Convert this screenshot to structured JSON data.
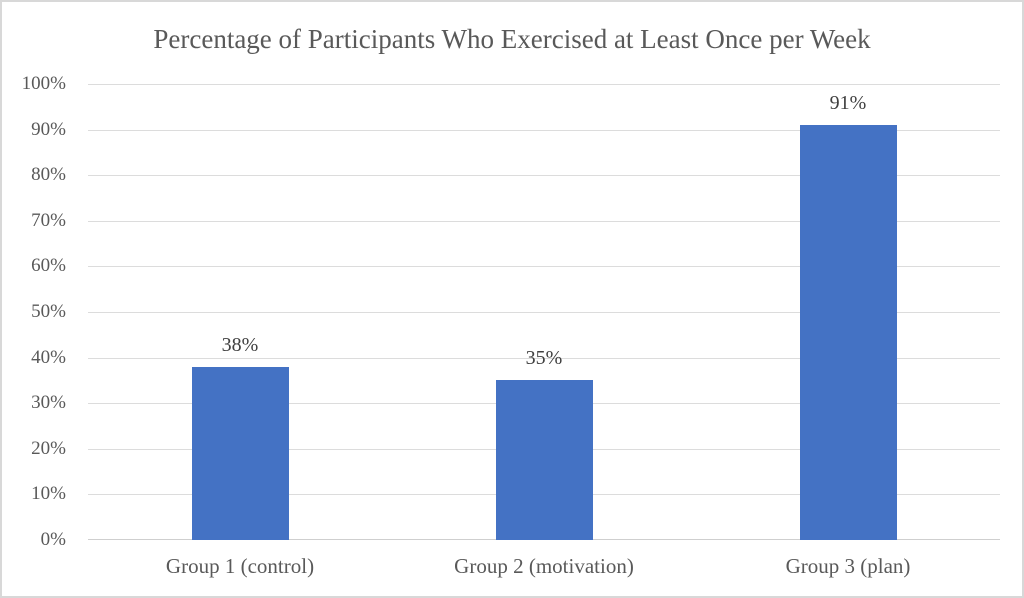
{
  "chart_data": {
    "type": "bar",
    "title": "Percentage of Participants Who Exercised at Least Once per Week",
    "categories": [
      "Group 1 (control)",
      "Group 2 (motivation)",
      "Group 3 (plan)"
    ],
    "values": [
      38,
      35,
      91
    ],
    "value_labels": [
      "38%",
      "35%",
      "91%"
    ],
    "ytick_values": [
      0,
      10,
      20,
      30,
      40,
      50,
      60,
      70,
      80,
      90,
      100
    ],
    "ytick_labels": [
      "0%",
      "10%",
      "20%",
      "30%",
      "40%",
      "50%",
      "60%",
      "70%",
      "80%",
      "90%",
      "100%"
    ],
    "ylim": [
      0,
      100
    ],
    "xlabel": "",
    "ylabel": "",
    "legend": "none",
    "grid": true,
    "colors": {
      "bar": "#4472C4",
      "gridline": "#DCDCDC",
      "axis_line": "#CFCFCF",
      "title_text": "#595959",
      "tick_text": "#595959",
      "data_label_text": "#404040",
      "frame_border": "#D8D8D8",
      "background": "#FFFFFF"
    }
  }
}
